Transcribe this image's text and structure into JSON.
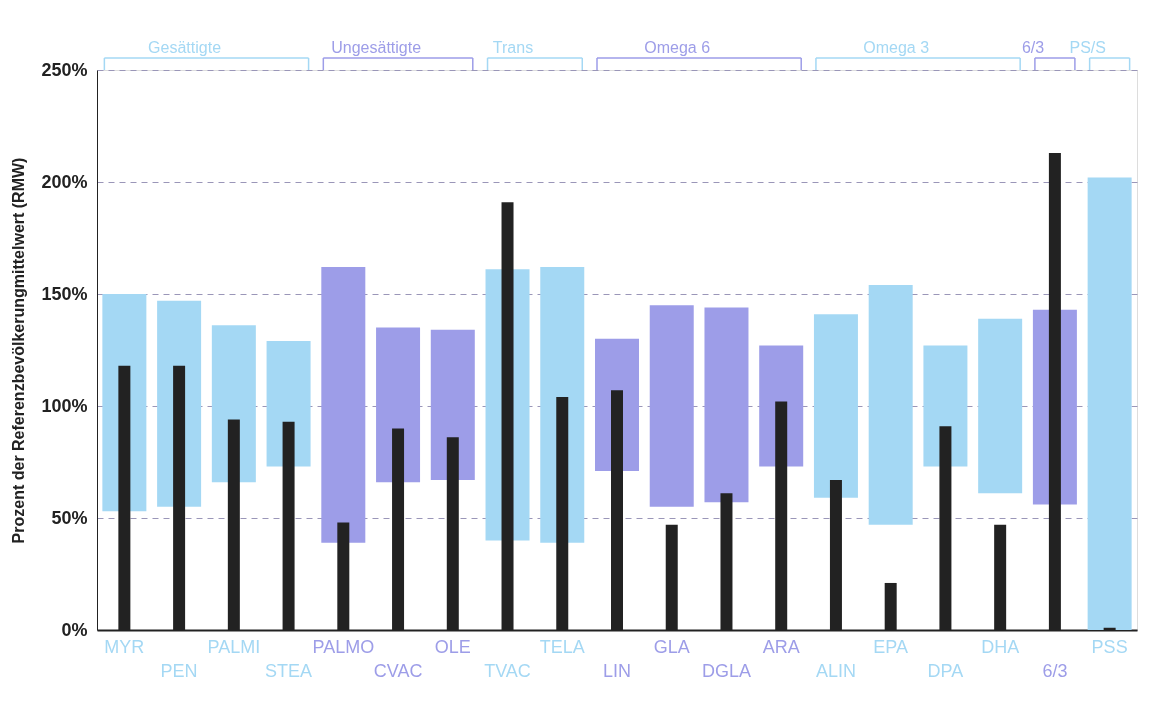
{
  "chart_data": {
    "type": "bar",
    "ylabel": "Prozent der Referenzbevölkerungmittelwert (RMW)",
    "categories": [
      "MYR",
      "PEN",
      "PALMI",
      "STEA",
      "PALMO",
      "CVAC",
      "OLE",
      "TVAC",
      "TELA",
      "LIN",
      "GLA",
      "DGLA",
      "ARA",
      "ALIN",
      "EPA",
      "DPA",
      "DHA",
      "6/3",
      "PSS"
    ],
    "series": [
      {
        "base": [
          53,
          55,
          66,
          73,
          39,
          66,
          67,
          40,
          39,
          71,
          55,
          57,
          73,
          59,
          47,
          73,
          61,
          56,
          0
        ],
        "values": [
          97,
          92,
          70,
          56,
          123,
          69,
          67,
          121,
          123,
          59,
          90,
          87,
          54,
          82,
          107,
          54,
          78,
          87,
          202
        ],
        "colors": [
          "#a4d8f4",
          "#a4d8f4",
          "#a4d8f4",
          "#a4d8f4",
          "#9d9de8",
          "#9d9de8",
          "#9d9de8",
          "#a4d8f4",
          "#a4d8f4",
          "#9d9de8",
          "#9d9de8",
          "#9d9de8",
          "#9d9de8",
          "#a4d8f4",
          "#a4d8f4",
          "#a4d8f4",
          "#a4d8f4",
          "#9d9de8",
          "#a4d8f4"
        ]
      },
      {
        "color": "#222222",
        "values": [
          118,
          118,
          94,
          93,
          48,
          90,
          86,
          191,
          104,
          107,
          47,
          61,
          102,
          67,
          21,
          91,
          47,
          213,
          1
        ]
      }
    ],
    "ylim": [
      0,
      250
    ],
    "yticks": [
      {
        "value": 0,
        "label": "0%"
      },
      {
        "value": 50,
        "label": "50%"
      },
      {
        "value": 100,
        "label": "100%"
      },
      {
        "value": 150,
        "label": "150%"
      },
      {
        "value": 200,
        "label": "200%"
      },
      {
        "value": 250,
        "label": "250%"
      }
    ],
    "grid": "y",
    "annotations": [
      "Gesättigte",
      "Ungesättigte",
      "Trans",
      "Omega 6",
      "Omega 3",
      "6/3",
      "PS/S"
    ]
  }
}
